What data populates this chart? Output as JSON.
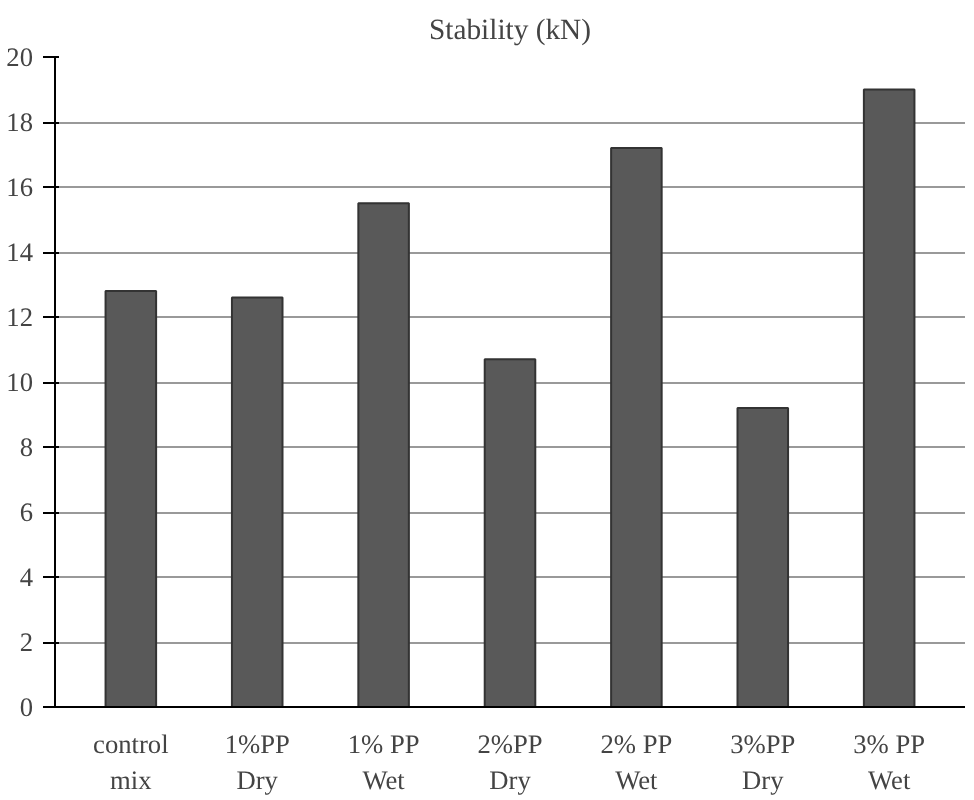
{
  "chart_data": {
    "type": "bar",
    "title": "Stability (kN)",
    "categories": [
      "control\nmix",
      "1%PP\nDry",
      "1% PP\nWet",
      "2%PP\nDry",
      "2% PP\nWet",
      "3%PP\nDry",
      "3% PP\nWet"
    ],
    "values": [
      12.8,
      12.6,
      15.5,
      10.7,
      17.2,
      9.2,
      19.0
    ],
    "color": "#595959",
    "ylim": [
      0,
      20
    ],
    "yticks": [
      0,
      2,
      4,
      6,
      8,
      10,
      12,
      14,
      16,
      18,
      20
    ],
    "grid": "y"
  }
}
